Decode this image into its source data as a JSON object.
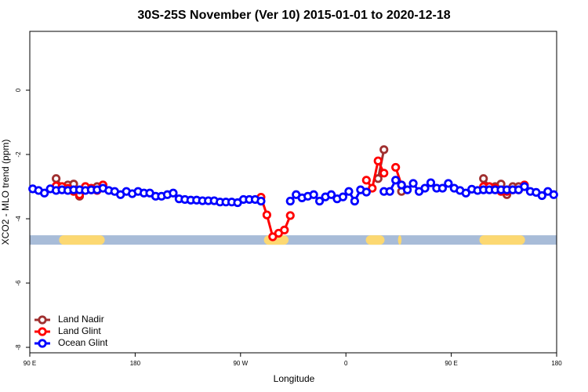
{
  "chart_data": {
    "type": "line",
    "title": "30S-25S November (Ver 10)   2015-01-01 to 2020-12-18",
    "xlabel": "Longitude",
    "ylabel": "XCO2 - MLO trend (ppm)",
    "xlim": [
      90,
      540
    ],
    "ylim": [
      -8.17,
      1.83
    ],
    "xticks": [
      {
        "value": 90,
        "label": "90 E"
      },
      180,
      {
        "value": 270,
        "label": "90 W"
      },
      {
        "value": 360,
        "label": "0"
      },
      {
        "value": 450,
        "label": "90 E"
      },
      {
        "value": 540,
        "label": "180"
      }
    ],
    "yticks": [
      0,
      -2,
      -4,
      -6,
      -8
    ],
    "legend": "bottom-left",
    "band": {
      "y": -4.66,
      "color": "#a8bcd8",
      "land_color": "#fcd872",
      "land": [
        [
          115,
          154
        ],
        [
          290,
          311
        ],
        [
          377,
          393
        ],
        [
          404.5,
          407.5
        ],
        [
          474,
          513
        ]
      ]
    },
    "x": [
      92.5,
      97.5,
      102.5,
      107.5,
      112.5,
      117.5,
      122.5,
      127.5,
      132.5,
      137.5,
      142.5,
      147.5,
      152.5,
      157.5,
      162.5,
      167.5,
      172.5,
      177.5,
      182.5,
      187.5,
      192.5,
      197.5,
      202.5,
      207.5,
      212.5,
      217.5,
      222.5,
      227.5,
      232.5,
      237.5,
      242.5,
      247.5,
      252.5,
      257.5,
      262.5,
      267.5,
      272.5,
      277.5,
      282.5,
      287.5,
      292.5,
      297.5,
      302.5,
      307.5,
      312.5,
      317.5,
      322.5,
      327.5,
      332.5,
      337.5,
      342.5,
      347.5,
      352.5,
      357.5,
      362.5,
      367.5,
      372.5,
      377.5,
      382.5,
      387.5,
      392.5,
      397.5,
      402.5,
      407.5,
      412.5,
      417.5,
      422.5,
      427.5,
      432.5,
      437.5,
      442.5,
      447.5,
      452.5,
      457.5,
      462.5,
      467.5,
      472.5,
      477.5,
      482.5,
      487.5,
      492.5,
      497.5,
      502.5,
      507.5,
      512.5,
      517.5,
      522.5,
      527.5,
      532.5,
      537.5
    ],
    "series": [
      {
        "name": "Land Nadir",
        "color": "#a03030",
        "values": [
          null,
          null,
          null,
          null,
          -2.75,
          -3.0,
          -2.95,
          -2.92,
          -3.3,
          -3.0,
          -3.1,
          -3.0,
          -2.95,
          null,
          null,
          null,
          null,
          null,
          null,
          null,
          null,
          null,
          null,
          null,
          null,
          null,
          null,
          null,
          null,
          null,
          null,
          null,
          null,
          null,
          null,
          null,
          null,
          null,
          null,
          null,
          null,
          null,
          null,
          null,
          null,
          null,
          null,
          null,
          null,
          null,
          null,
          null,
          null,
          null,
          null,
          null,
          null,
          null,
          null,
          -2.75,
          -1.85,
          null,
          null,
          -3.15,
          null,
          null,
          null,
          null,
          null,
          null,
          null,
          null,
          null,
          null,
          null,
          null,
          null,
          -2.75,
          -3.0,
          -3.0,
          -2.92,
          -3.25,
          -3.0,
          -3.0,
          -3.0,
          null,
          null,
          null,
          null,
          null
        ]
      },
      {
        "name": "Land Glint",
        "color": "#ff0000",
        "values": [
          null,
          null,
          null,
          null,
          -2.98,
          -3.0,
          -3.05,
          -3.15,
          -3.25,
          -3.0,
          -3.05,
          -3.12,
          -2.95,
          null,
          null,
          null,
          null,
          null,
          null,
          null,
          null,
          null,
          null,
          null,
          null,
          null,
          null,
          null,
          null,
          null,
          null,
          null,
          null,
          null,
          null,
          null,
          null,
          null,
          null,
          -3.33,
          -3.88,
          -4.56,
          -4.45,
          -4.35,
          -3.9,
          null,
          null,
          null,
          null,
          null,
          null,
          null,
          null,
          null,
          null,
          null,
          null,
          -2.8,
          -3.05,
          -2.2,
          -2.58,
          null,
          -2.4,
          -2.95,
          null,
          null,
          null,
          null,
          null,
          null,
          null,
          null,
          null,
          null,
          null,
          null,
          null,
          -3.0,
          -3.0,
          -3.05,
          -3.15,
          -3.15,
          -3.1,
          -3.1,
          -2.95,
          null,
          null,
          null,
          null,
          null
        ]
      },
      {
        "name": "Ocean Glint",
        "color": "#0000ff",
        "values": [
          -3.07,
          -3.12,
          -3.2,
          -3.07,
          -3.12,
          -3.1,
          -3.12,
          -3.1,
          -3.1,
          -3.12,
          -3.1,
          -3.1,
          -3.05,
          -3.12,
          -3.15,
          -3.25,
          -3.15,
          -3.22,
          -3.15,
          -3.2,
          -3.2,
          -3.3,
          -3.3,
          -3.25,
          -3.2,
          -3.38,
          -3.4,
          -3.42,
          -3.42,
          -3.44,
          -3.44,
          -3.44,
          -3.48,
          -3.48,
          -3.48,
          -3.5,
          -3.4,
          -3.4,
          -3.4,
          -3.45,
          null,
          null,
          null,
          null,
          -3.45,
          -3.25,
          -3.35,
          -3.3,
          -3.25,
          -3.45,
          -3.32,
          -3.25,
          -3.38,
          -3.32,
          -3.15,
          -3.45,
          -3.1,
          -3.17,
          null,
          null,
          -3.15,
          -3.15,
          -2.8,
          -2.95,
          -3.1,
          -2.9,
          -3.15,
          -3.05,
          -2.88,
          -3.05,
          -3.05,
          -2.9,
          -3.05,
          -3.12,
          -3.2,
          -3.08,
          -3.12,
          -3.1,
          -3.1,
          -3.1,
          -3.1,
          -3.1,
          -3.1,
          -3.1,
          -3.0,
          -3.15,
          -3.18,
          -3.28,
          -3.15,
          -3.25
        ]
      }
    ]
  }
}
